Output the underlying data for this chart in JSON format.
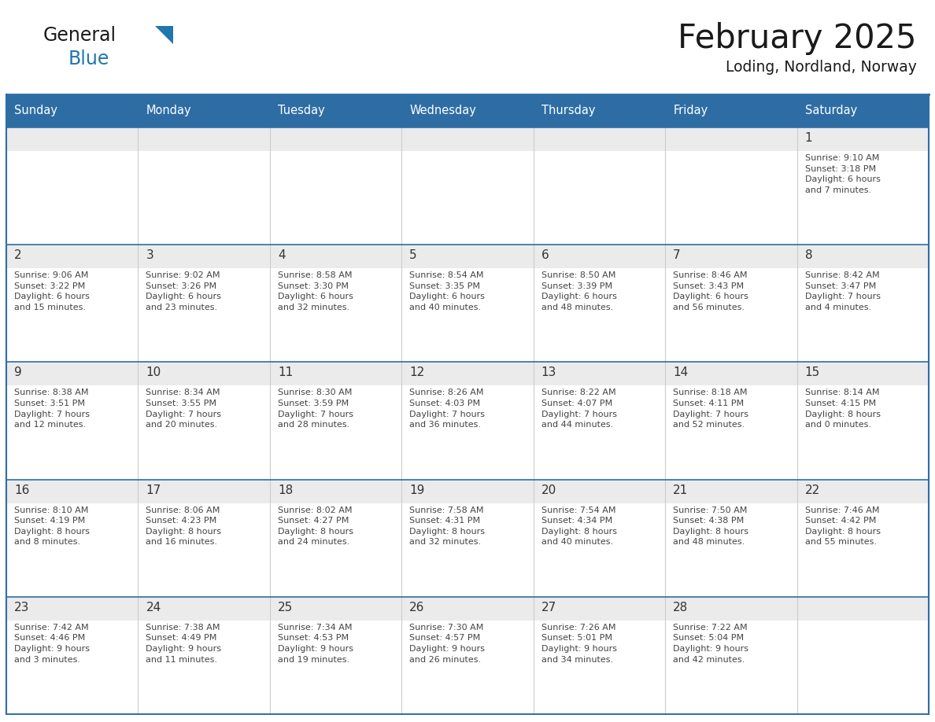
{
  "title": "February 2025",
  "subtitle": "Loding, Nordland, Norway",
  "days_of_week": [
    "Sunday",
    "Monday",
    "Tuesday",
    "Wednesday",
    "Thursday",
    "Friday",
    "Saturday"
  ],
  "header_bg": "#2E6DA4",
  "header_text": "#FFFFFF",
  "cell_bg_top": "#EBEBEB",
  "cell_bg_main": "#FFFFFF",
  "border_color": "#2E6DA4",
  "grid_line_color": "#BBBBBB",
  "text_color": "#444444",
  "num_color": "#333333",
  "logo_color_general": "#1a1a1a",
  "logo_color_blue": "#2176AE",
  "calendar_data": [
    [
      {
        "day": null,
        "info": null
      },
      {
        "day": null,
        "info": null
      },
      {
        "day": null,
        "info": null
      },
      {
        "day": null,
        "info": null
      },
      {
        "day": null,
        "info": null
      },
      {
        "day": null,
        "info": null
      },
      {
        "day": 1,
        "info": "Sunrise: 9:10 AM\nSunset: 3:18 PM\nDaylight: 6 hours\nand 7 minutes."
      }
    ],
    [
      {
        "day": 2,
        "info": "Sunrise: 9:06 AM\nSunset: 3:22 PM\nDaylight: 6 hours\nand 15 minutes."
      },
      {
        "day": 3,
        "info": "Sunrise: 9:02 AM\nSunset: 3:26 PM\nDaylight: 6 hours\nand 23 minutes."
      },
      {
        "day": 4,
        "info": "Sunrise: 8:58 AM\nSunset: 3:30 PM\nDaylight: 6 hours\nand 32 minutes."
      },
      {
        "day": 5,
        "info": "Sunrise: 8:54 AM\nSunset: 3:35 PM\nDaylight: 6 hours\nand 40 minutes."
      },
      {
        "day": 6,
        "info": "Sunrise: 8:50 AM\nSunset: 3:39 PM\nDaylight: 6 hours\nand 48 minutes."
      },
      {
        "day": 7,
        "info": "Sunrise: 8:46 AM\nSunset: 3:43 PM\nDaylight: 6 hours\nand 56 minutes."
      },
      {
        "day": 8,
        "info": "Sunrise: 8:42 AM\nSunset: 3:47 PM\nDaylight: 7 hours\nand 4 minutes."
      }
    ],
    [
      {
        "day": 9,
        "info": "Sunrise: 8:38 AM\nSunset: 3:51 PM\nDaylight: 7 hours\nand 12 minutes."
      },
      {
        "day": 10,
        "info": "Sunrise: 8:34 AM\nSunset: 3:55 PM\nDaylight: 7 hours\nand 20 minutes."
      },
      {
        "day": 11,
        "info": "Sunrise: 8:30 AM\nSunset: 3:59 PM\nDaylight: 7 hours\nand 28 minutes."
      },
      {
        "day": 12,
        "info": "Sunrise: 8:26 AM\nSunset: 4:03 PM\nDaylight: 7 hours\nand 36 minutes."
      },
      {
        "day": 13,
        "info": "Sunrise: 8:22 AM\nSunset: 4:07 PM\nDaylight: 7 hours\nand 44 minutes."
      },
      {
        "day": 14,
        "info": "Sunrise: 8:18 AM\nSunset: 4:11 PM\nDaylight: 7 hours\nand 52 minutes."
      },
      {
        "day": 15,
        "info": "Sunrise: 8:14 AM\nSunset: 4:15 PM\nDaylight: 8 hours\nand 0 minutes."
      }
    ],
    [
      {
        "day": 16,
        "info": "Sunrise: 8:10 AM\nSunset: 4:19 PM\nDaylight: 8 hours\nand 8 minutes."
      },
      {
        "day": 17,
        "info": "Sunrise: 8:06 AM\nSunset: 4:23 PM\nDaylight: 8 hours\nand 16 minutes."
      },
      {
        "day": 18,
        "info": "Sunrise: 8:02 AM\nSunset: 4:27 PM\nDaylight: 8 hours\nand 24 minutes."
      },
      {
        "day": 19,
        "info": "Sunrise: 7:58 AM\nSunset: 4:31 PM\nDaylight: 8 hours\nand 32 minutes."
      },
      {
        "day": 20,
        "info": "Sunrise: 7:54 AM\nSunset: 4:34 PM\nDaylight: 8 hours\nand 40 minutes."
      },
      {
        "day": 21,
        "info": "Sunrise: 7:50 AM\nSunset: 4:38 PM\nDaylight: 8 hours\nand 48 minutes."
      },
      {
        "day": 22,
        "info": "Sunrise: 7:46 AM\nSunset: 4:42 PM\nDaylight: 8 hours\nand 55 minutes."
      }
    ],
    [
      {
        "day": 23,
        "info": "Sunrise: 7:42 AM\nSunset: 4:46 PM\nDaylight: 9 hours\nand 3 minutes."
      },
      {
        "day": 24,
        "info": "Sunrise: 7:38 AM\nSunset: 4:49 PM\nDaylight: 9 hours\nand 11 minutes."
      },
      {
        "day": 25,
        "info": "Sunrise: 7:34 AM\nSunset: 4:53 PM\nDaylight: 9 hours\nand 19 minutes."
      },
      {
        "day": 26,
        "info": "Sunrise: 7:30 AM\nSunset: 4:57 PM\nDaylight: 9 hours\nand 26 minutes."
      },
      {
        "day": 27,
        "info": "Sunrise: 7:26 AM\nSunset: 5:01 PM\nDaylight: 9 hours\nand 34 minutes."
      },
      {
        "day": 28,
        "info": "Sunrise: 7:22 AM\nSunset: 5:04 PM\nDaylight: 9 hours\nand 42 minutes."
      },
      {
        "day": null,
        "info": null
      }
    ]
  ]
}
